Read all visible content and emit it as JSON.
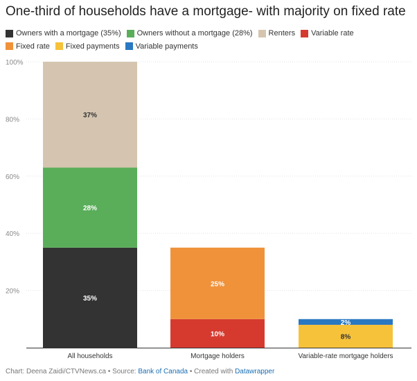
{
  "chart_data": {
    "type": "bar",
    "stacked": true,
    "title": "One-third of households have a mortgage- with majority on fixed rate",
    "categories": [
      "All households",
      "Mortgage holders",
      "Variable-rate mortgage holders"
    ],
    "y_ticks": [
      "100%",
      "80%",
      "60%",
      "40%",
      "20%"
    ],
    "ylim": [
      0,
      100
    ],
    "legend": [
      {
        "label": "Owners with a mortgage (35%)",
        "color": "#333333"
      },
      {
        "label": "Owners without a mortgage (28%)",
        "color": "#5aae5a"
      },
      {
        "label": "Renters",
        "color": "#d5c5b0"
      },
      {
        "label": "Variable rate",
        "color": "#d63a2f"
      },
      {
        "label": "Fixed rate",
        "color": "#f0923a"
      },
      {
        "label": "Fixed payments",
        "color": "#f6c23a"
      },
      {
        "label": "Variable payments",
        "color": "#2a78c2"
      }
    ],
    "stacks": [
      {
        "category": "All households",
        "segments": [
          {
            "series": "Owners with a mortgage (35%)",
            "value": 35,
            "label": "35%",
            "color": "#333333",
            "label_color": "#ffffff"
          },
          {
            "series": "Owners without a mortgage (28%)",
            "value": 28,
            "label": "28%",
            "color": "#5aae5a",
            "label_color": "#ffffff"
          },
          {
            "series": "Renters",
            "value": 37,
            "label": "37%",
            "color": "#d5c5b0",
            "label_color": "#333333"
          }
        ]
      },
      {
        "category": "Mortgage holders",
        "segments": [
          {
            "series": "Variable rate",
            "value": 10,
            "label": "10%",
            "color": "#d63a2f",
            "label_color": "#ffffff"
          },
          {
            "series": "Fixed rate",
            "value": 25,
            "label": "25%",
            "color": "#f0923a",
            "label_color": "#ffffff"
          }
        ]
      },
      {
        "category": "Variable-rate mortgage holders",
        "segments": [
          {
            "series": "Fixed payments",
            "value": 8,
            "label": "8%",
            "color": "#f6c23a",
            "label_color": "#333333"
          },
          {
            "series": "Variable payments",
            "value": 2,
            "label": "2%",
            "color": "#2a78c2",
            "label_color": "#ffffff"
          }
        ]
      }
    ]
  },
  "footer": {
    "prefix": "Chart: Deena Zaidi/CTVNews.ca • Source: ",
    "source_link": "Bank of Canada",
    "middle": " • Created with ",
    "tool_link": "Datawrapper"
  }
}
